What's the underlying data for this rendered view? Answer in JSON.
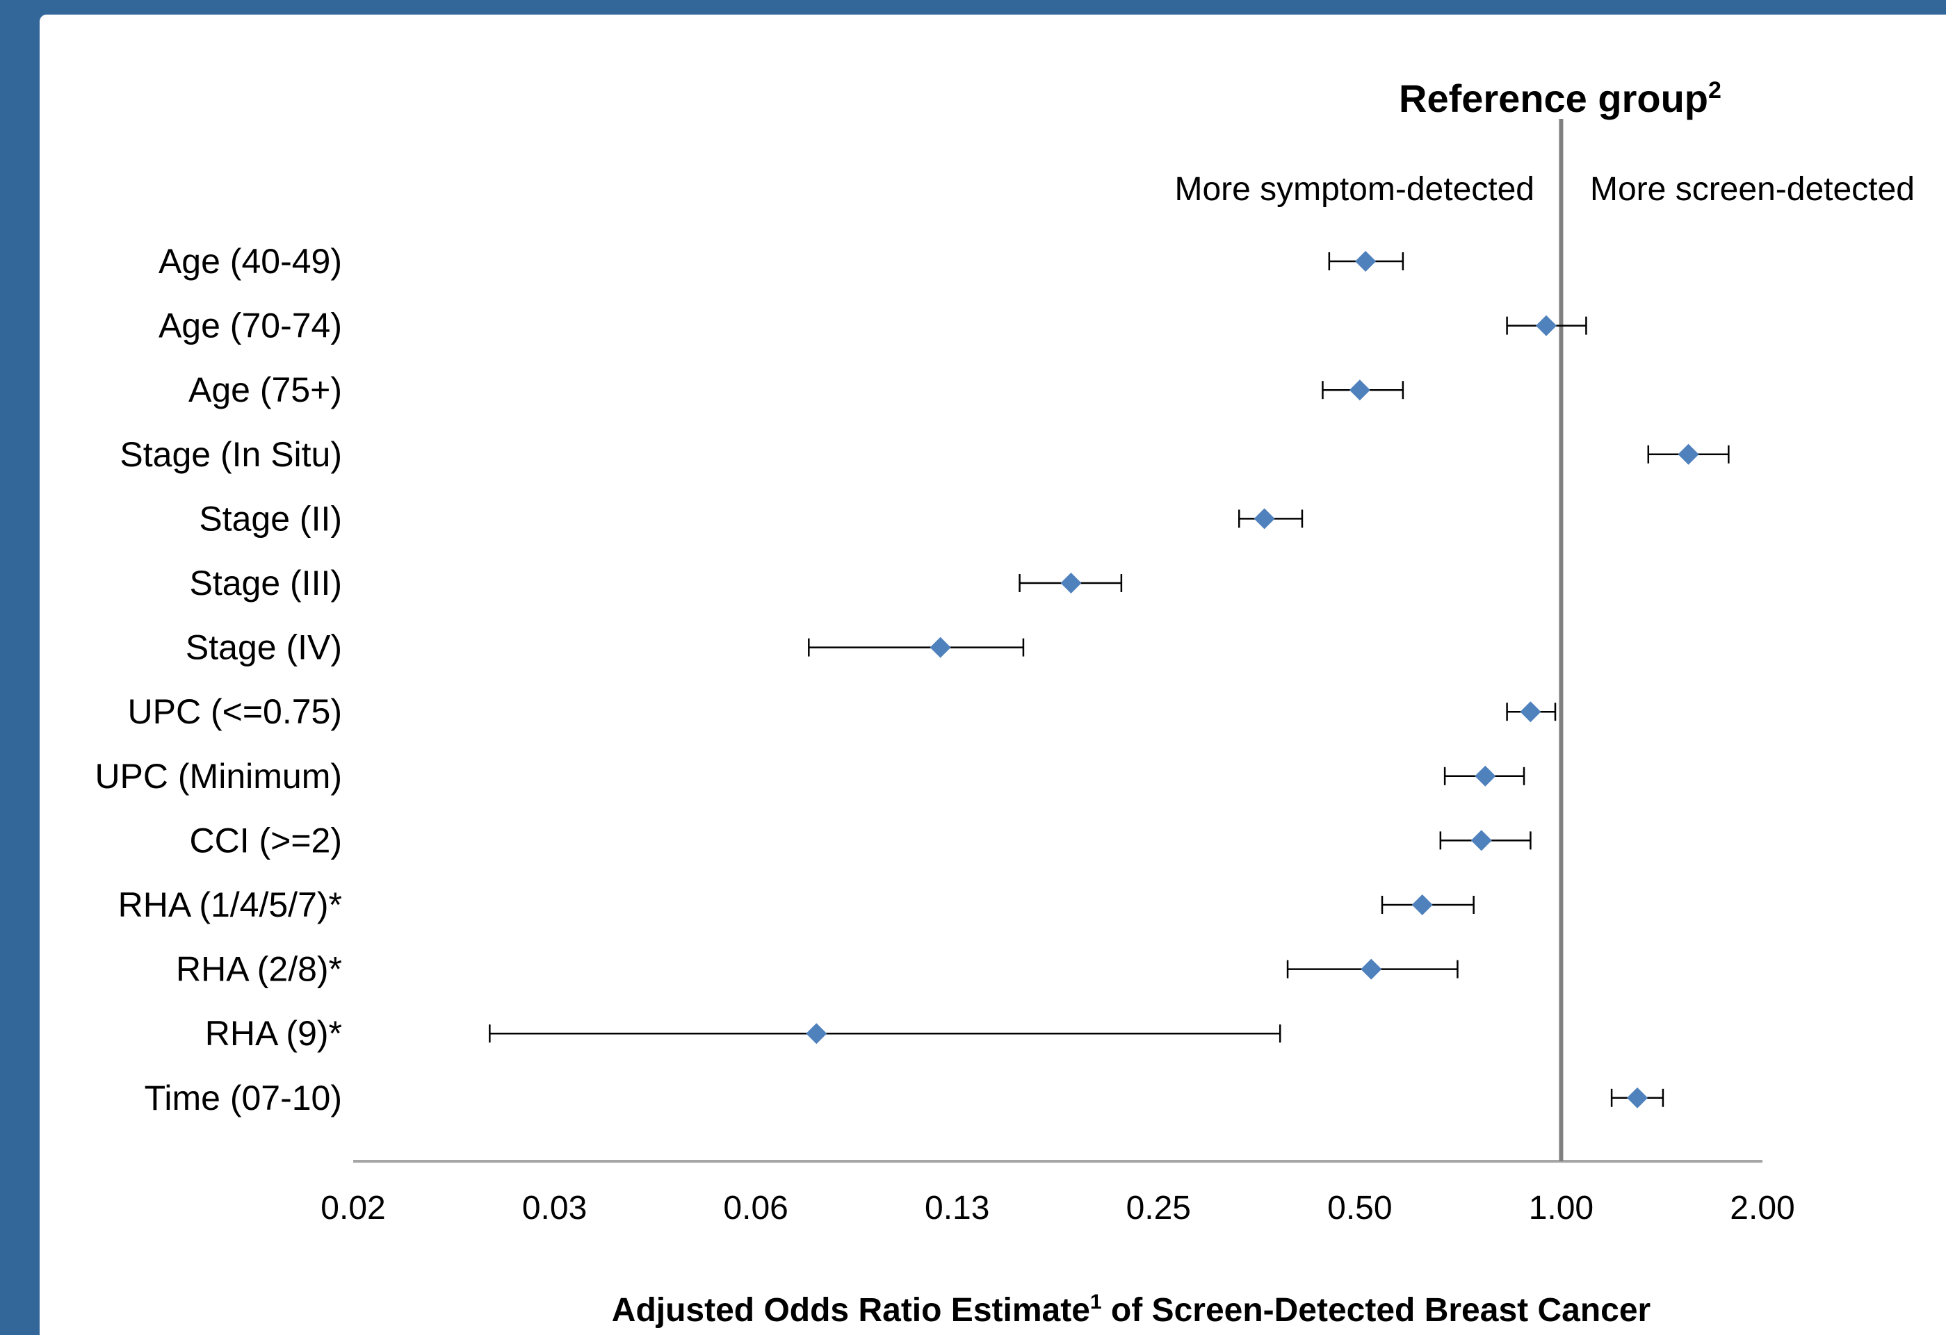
{
  "colors": {
    "frame": "#336699",
    "marker": "#4f81bd",
    "reference_line": "#808080",
    "axis": "#a6a6a6"
  },
  "chart_data": {
    "type": "forest",
    "title": "Reference group",
    "title_superscript": "2",
    "left_annotation": "More symptom-detected",
    "right_annotation": "More screen-detected",
    "xlabel_before_sup": "Adjusted Odds Ratio Estimate",
    "xlabel_superscript": "1",
    "xlabel_after_sup": " of Screen-Detected Breast Cancer",
    "x_scale": "log2",
    "xlim": [
      0.015625,
      2.0
    ],
    "reference_value": 1.0,
    "x_ticks": [
      {
        "value": 0.015625,
        "label": "0.02"
      },
      {
        "value": 0.03125,
        "label": "0.03"
      },
      {
        "value": 0.0625,
        "label": "0.06"
      },
      {
        "value": 0.125,
        "label": "0.13"
      },
      {
        "value": 0.25,
        "label": "0.25"
      },
      {
        "value": 0.5,
        "label": "0.50"
      },
      {
        "value": 1.0,
        "label": "1.00"
      },
      {
        "value": 2.0,
        "label": "2.00"
      }
    ],
    "rows": [
      {
        "label": "Age (40-49)",
        "estimate": 0.51,
        "lower": 0.45,
        "upper": 0.58
      },
      {
        "label": "Age (70-74)",
        "estimate": 0.95,
        "lower": 0.83,
        "upper": 1.09
      },
      {
        "label": "Age (75+)",
        "estimate": 0.5,
        "lower": 0.44,
        "upper": 0.58
      },
      {
        "label": "Stage (In Situ)",
        "estimate": 1.55,
        "lower": 1.35,
        "upper": 1.78
      },
      {
        "label": "Stage (II)",
        "estimate": 0.36,
        "lower": 0.33,
        "upper": 0.41
      },
      {
        "label": "Stage (III)",
        "estimate": 0.185,
        "lower": 0.155,
        "upper": 0.22
      },
      {
        "label": "Stage (IV)",
        "estimate": 0.118,
        "lower": 0.075,
        "upper": 0.157
      },
      {
        "label": "UPC (<=0.75)",
        "estimate": 0.9,
        "lower": 0.83,
        "upper": 0.98
      },
      {
        "label": "UPC (Minimum)",
        "estimate": 0.77,
        "lower": 0.67,
        "upper": 0.88
      },
      {
        "label": "CCI (>=2)",
        "estimate": 0.76,
        "lower": 0.66,
        "upper": 0.9
      },
      {
        "label": "RHA (1/4/5/7)*",
        "estimate": 0.62,
        "lower": 0.54,
        "upper": 0.74
      },
      {
        "label": "RHA (2/8)*",
        "estimate": 0.52,
        "lower": 0.39,
        "upper": 0.7
      },
      {
        "label": "RHA (9)*",
        "estimate": 0.077,
        "lower": 0.025,
        "upper": 0.38
      },
      {
        "label": "Time (07-10)",
        "estimate": 1.3,
        "lower": 1.19,
        "upper": 1.42
      }
    ]
  }
}
